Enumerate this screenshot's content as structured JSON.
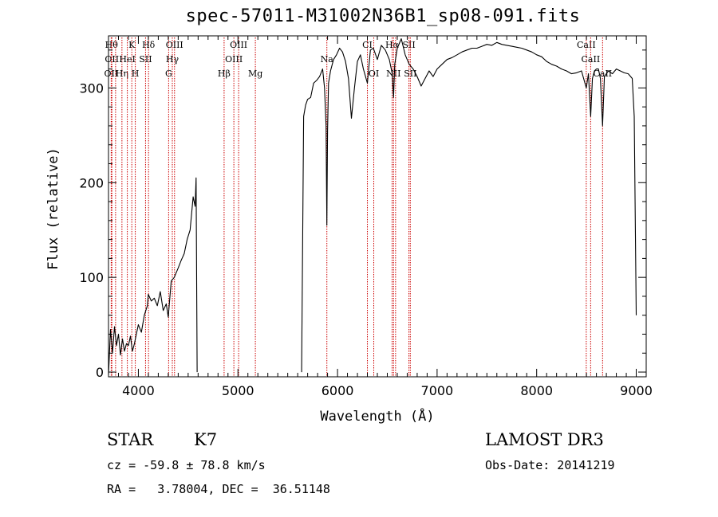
{
  "chart_data": {
    "type": "line",
    "title": "spec-57011-M31002N36B1_sp08-091.fits",
    "xlabel": "Wavelength (Å)",
    "ylabel": "Flux (relative)",
    "xlim": [
      3700,
      9100
    ],
    "ylim": [
      -5,
      355
    ],
    "xticks": [
      4000,
      5000,
      6000,
      7000,
      8000,
      9000
    ],
    "yticks": [
      0,
      100,
      200,
      300
    ],
    "grid": false,
    "series": [
      {
        "color": "#000000",
        "x": [
          3700,
          3720,
          3740,
          3760,
          3780,
          3800,
          3820,
          3840,
          3860,
          3880,
          3900,
          3920,
          3940,
          3960,
          3980,
          4000,
          4030,
          4060,
          4090,
          4100,
          4130,
          4160,
          4190,
          4220,
          4250,
          4280,
          4300,
          4330,
          4360,
          4400,
          4430,
          4460,
          4490,
          4520,
          4550,
          4570,
          4580,
          4590,
          5640,
          5660,
          5680,
          5700,
          5730,
          5760,
          5790,
          5820,
          5850,
          5870,
          5885,
          5893,
          5900,
          5910,
          5930,
          5960,
          5990,
          6020,
          6050,
          6080,
          6110,
          6140,
          6170,
          6200,
          6230,
          6260,
          6300,
          6330,
          6360,
          6400,
          6440,
          6480,
          6520,
          6550,
          6563,
          6575,
          6600,
          6640,
          6680,
          6720,
          6760,
          6800,
          6840,
          6880,
          6920,
          6960,
          7000,
          7050,
          7100,
          7150,
          7200,
          7250,
          7300,
          7350,
          7400,
          7450,
          7500,
          7550,
          7600,
          7650,
          7700,
          7750,
          7800,
          7850,
          7900,
          7950,
          8000,
          8050,
          8100,
          8150,
          8200,
          8250,
          8300,
          8350,
          8400,
          8450,
          8498,
          8520,
          8542,
          8560,
          8580,
          8600,
          8620,
          8640,
          8662,
          8680,
          8720,
          8760,
          8800,
          8840,
          8880,
          8920,
          8960,
          8980,
          9000
        ],
        "y": [
          -3,
          45,
          20,
          48,
          28,
          40,
          18,
          35,
          22,
          30,
          28,
          38,
          22,
          30,
          40,
          50,
          42,
          60,
          70,
          82,
          75,
          78,
          70,
          85,
          65,
          72,
          58,
          96,
          100,
          110,
          118,
          125,
          140,
          150,
          185,
          175,
          205,
          2,
          4,
          270,
          282,
          288,
          290,
          305,
          308,
          312,
          320,
          300,
          260,
          155,
          255,
          305,
          318,
          330,
          335,
          342,
          338,
          328,
          310,
          268,
          300,
          328,
          335,
          320,
          305,
          340,
          342,
          330,
          345,
          340,
          330,
          315,
          290,
          325,
          342,
          352,
          335,
          325,
          320,
          312,
          302,
          310,
          318,
          312,
          320,
          325,
          330,
          332,
          335,
          338,
          340,
          342,
          342,
          344,
          346,
          345,
          348,
          346,
          345,
          344,
          343,
          342,
          340,
          338,
          335,
          333,
          328,
          325,
          323,
          320,
          318,
          315,
          316,
          318,
          300,
          315,
          270,
          310,
          318,
          320,
          320,
          310,
          260,
          312,
          318,
          315,
          320,
          318,
          316,
          315,
          310,
          270,
          60
        ],
        "gaps_after_x": [
          4590
        ]
      }
    ],
    "line_markers": [
      {
        "wavelength": 3730,
        "label": "Hθ",
        "row": 0
      },
      {
        "wavelength": 3734,
        "label": "OII",
        "row": 1
      },
      {
        "wavelength": 3727,
        "label": "OII",
        "row": 2
      },
      {
        "wavelength": 3771,
        "label": "",
        "row": 3
      },
      {
        "wavelength": 3835,
        "label": "Hη",
        "row": 2
      },
      {
        "wavelength": 3889,
        "label": "HeI",
        "row": 1
      },
      {
        "wavelength": 3934,
        "label": "K",
        "row": 0
      },
      {
        "wavelength": 3969,
        "label": "H",
        "row": 2
      },
      {
        "wavelength": 4072,
        "label": "SII",
        "row": 1
      },
      {
        "wavelength": 4102,
        "label": "Hδ",
        "row": 0
      },
      {
        "wavelength": 4304,
        "label": "G",
        "row": 2
      },
      {
        "wavelength": 4341,
        "label": "Hγ",
        "row": 1
      },
      {
        "wavelength": 4363,
        "label": "OIII",
        "row": 0
      },
      {
        "wavelength": 4861,
        "label": "Hβ",
        "row": 2
      },
      {
        "wavelength": 4959,
        "label": "OIII",
        "row": 1
      },
      {
        "wavelength": 5007,
        "label": "OIII",
        "row": 0
      },
      {
        "wavelength": 5175,
        "label": "Mg",
        "row": 2
      },
      {
        "wavelength": 5893,
        "label": "Na",
        "row": 1
      },
      {
        "wavelength": 6300,
        "label": "CI",
        "row": 0
      },
      {
        "wavelength": 6364,
        "label": "OI",
        "row": 2
      },
      {
        "wavelength": 6548,
        "label": "Hα",
        "row": 0
      },
      {
        "wavelength": 6563,
        "label": "NII",
        "row": 2
      },
      {
        "wavelength": 6583,
        "label": "",
        "row": 1
      },
      {
        "wavelength": 6717,
        "label": "SII",
        "row": 0
      },
      {
        "wavelength": 6731,
        "label": "SII",
        "row": 2
      },
      {
        "wavelength": 8498,
        "label": "CaII",
        "row": 0
      },
      {
        "wavelength": 8542,
        "label": "CaII",
        "row": 1
      },
      {
        "wavelength": 8662,
        "label": "CaII",
        "row": 2
      }
    ],
    "marker_color": "#cc0000"
  },
  "info": {
    "object_class": "STAR",
    "subclass": "K7",
    "survey": "LAMOST DR3",
    "cz_line": "cz = -59.8 ± 78.8 km/s",
    "obs_date": "Obs-Date: 20141219",
    "coords": "RA =   3.78004, DEC =  36.51148"
  }
}
